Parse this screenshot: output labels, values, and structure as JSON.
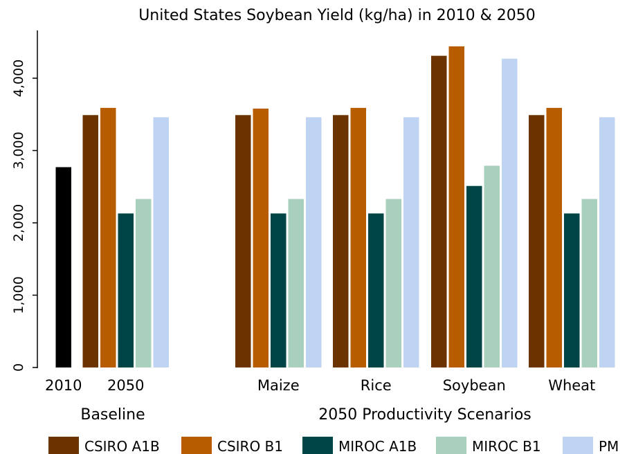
{
  "chart_data": {
    "type": "bar",
    "title": "United States Soybean Yield (kg/ha) in 2010 & 2050",
    "ylim": [
      0,
      4600
    ],
    "yticks": [
      0,
      1000,
      2000,
      3000,
      4000
    ],
    "ytick_labels": [
      "0",
      "1,000",
      "2,000",
      "3,000",
      "4,000"
    ],
    "grid": false,
    "legend_position": "bottom",
    "series": [
      {
        "name": "CSIRO A1B",
        "color": "#6b3300"
      },
      {
        "name": "CSIRO B1",
        "color": "#b85c00"
      },
      {
        "name": "MIROC A1B",
        "color": "#004545"
      },
      {
        "name": "MIROC B1",
        "color": "#a8d0bc"
      },
      {
        "name": "PM",
        "color": "#bfd3f2"
      }
    ],
    "baseline_2010": {
      "label": "2010",
      "value": 2770,
      "color": "#000000"
    },
    "groups": [
      {
        "label": "Baseline",
        "categories": [
          {
            "label": "2050",
            "values": [
              3490,
              3590,
              2130,
              2330,
              3460
            ]
          }
        ]
      },
      {
        "label": "2050 Productivity Scenarios",
        "categories": [
          {
            "label": "Maize",
            "values": [
              3490,
              3580,
              2130,
              2330,
              3460
            ]
          },
          {
            "label": "Rice",
            "values": [
              3490,
              3590,
              2130,
              2330,
              3460
            ]
          },
          {
            "label": "Soybean",
            "values": [
              4310,
              4440,
              2510,
              2790,
              4270
            ]
          },
          {
            "label": "Wheat",
            "values": [
              3490,
              3590,
              2130,
              2330,
              3460
            ]
          }
        ]
      }
    ]
  }
}
